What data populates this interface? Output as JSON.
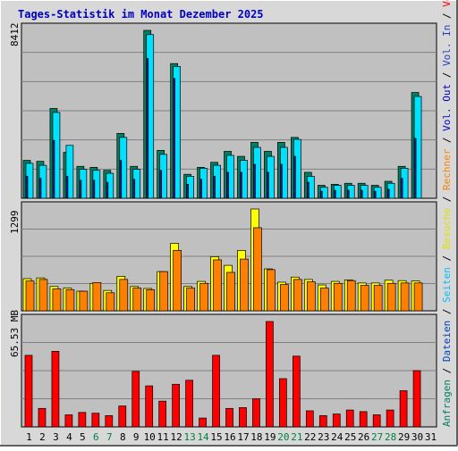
{
  "title": "Tages-Statistik im Monat Dezember 2025",
  "colors": {
    "background": "#c0c0c0",
    "page": "#e0e0e0",
    "title": "#0000c0",
    "grid": "#808080",
    "hits": "#008060",
    "files": "#00e0ff",
    "pages": "#00c0ff",
    "visits": "#ffff00",
    "sites": "#ff8000",
    "volume": "#ff0000",
    "in": "#2040c0",
    "out": "#0000c0",
    "weekend": "#008040",
    "weekday": "#000000"
  },
  "right_legend": {
    "top": [
      {
        "text": "Anfragen",
        "color": "#008060"
      },
      {
        "text": " / ",
        "color": "#000000"
      },
      {
        "text": "Dateien",
        "color": "#0040c0"
      },
      {
        "text": " / ",
        "color": "#000000"
      },
      {
        "text": "Seiten",
        "color": "#00c0ff"
      },
      {
        "text": " / ",
        "color": "#000000"
      },
      {
        "text": "Besuche",
        "color": "#e0e000"
      },
      {
        "text": " / ",
        "color": "#000000"
      },
      {
        "text": "Rechner",
        "color": "#ff8000"
      },
      {
        "text": " / ",
        "color": "#000000"
      },
      {
        "text": "Vol. Out",
        "color": "#0000c0"
      },
      {
        "text": " / ",
        "color": "#000000"
      },
      {
        "text": "Vol. In",
        "color": "#2040c0"
      },
      {
        "text": " / ",
        "color": "#000000"
      },
      {
        "text": "Volumen",
        "color": "#ff0000"
      }
    ]
  },
  "chart_data": [
    {
      "type": "bar",
      "name": "requests-chart",
      "max_label": "8412",
      "ylim": [
        0,
        8412
      ],
      "series": [
        {
          "name": "Anfragen",
          "color": "#008060",
          "values": [
            1900,
            1850,
            4500,
            2300,
            1600,
            1550,
            1400,
            3250,
            1600,
            8412,
            2400,
            6750,
            1200,
            1550,
            1800,
            2350,
            2100,
            2800,
            2350,
            2800,
            3050,
            1300,
            650,
            700,
            750,
            750,
            650,
            850,
            1600,
            5300,
            0
          ]
        },
        {
          "name": "Dateien",
          "color": "#00e0ff",
          "values": [
            1750,
            1650,
            4300,
            2650,
            1450,
            1400,
            1250,
            3050,
            1450,
            8200,
            2200,
            6600,
            1100,
            1500,
            1650,
            2150,
            1900,
            2550,
            2100,
            2550,
            2950,
            1100,
            550,
            650,
            650,
            650,
            550,
            750,
            1500,
            5100,
            0
          ]
        },
        {
          "name": "Seiten",
          "color": "#1020a0",
          "values": [
            1100,
            1000,
            2900,
            1100,
            900,
            900,
            800,
            1900,
            950,
            7000,
            1400,
            6000,
            700,
            950,
            1100,
            1300,
            1300,
            1700,
            1300,
            1700,
            2100,
            800,
            350,
            400,
            400,
            400,
            350,
            450,
            1000,
            3000,
            0
          ]
        }
      ]
    },
    {
      "type": "bar",
      "name": "visits-chart",
      "max_label": "1299",
      "ylim": [
        0,
        1299
      ],
      "series": [
        {
          "name": "Besuche",
          "color": "#ffff00",
          "values": [
            410,
            420,
            310,
            290,
            250,
            350,
            260,
            440,
            310,
            285,
            500,
            860,
            310,
            375,
            690,
            580,
            770,
            1299,
            535,
            365,
            430,
            400,
            330,
            375,
            395,
            355,
            355,
            390,
            385,
            380,
            0
          ]
        },
        {
          "name": "Rechner",
          "color": "#ff8000",
          "values": [
            380,
            400,
            280,
            270,
            250,
            360,
            230,
            400,
            290,
            270,
            500,
            770,
            290,
            350,
            650,
            490,
            660,
            1060,
            525,
            335,
            400,
            370,
            290,
            350,
            385,
            325,
            325,
            350,
            355,
            355,
            0
          ]
        }
      ]
    },
    {
      "type": "bar",
      "name": "volume-chart",
      "max_label": "65.53 MB",
      "ylim": [
        0,
        65.53
      ],
      "series": [
        {
          "name": "Volumen",
          "color": "#ff0000",
          "values": [
            44.5,
            11.5,
            47.0,
            7.5,
            9.0,
            8.5,
            7.0,
            13.0,
            34.5,
            25.5,
            16.0,
            26.5,
            29.0,
            5.5,
            44.5,
            11.5,
            12.0,
            17.5,
            65.53,
            30.0,
            44.0,
            10.0,
            7.0,
            8.0,
            10.5,
            9.5,
            7.5,
            10.5,
            22.5,
            35.0,
            0
          ]
        }
      ]
    }
  ],
  "days": [
    "1",
    "2",
    "3",
    "4",
    "5",
    "6",
    "7",
    "8",
    "9",
    "10",
    "11",
    "12",
    "13",
    "14",
    "15",
    "16",
    "17",
    "18",
    "19",
    "20",
    "21",
    "22",
    "23",
    "24",
    "25",
    "26",
    "27",
    "28",
    "29",
    "30",
    "31"
  ],
  "weekend_days": [
    6,
    7,
    13,
    14,
    20,
    21,
    27,
    28
  ]
}
